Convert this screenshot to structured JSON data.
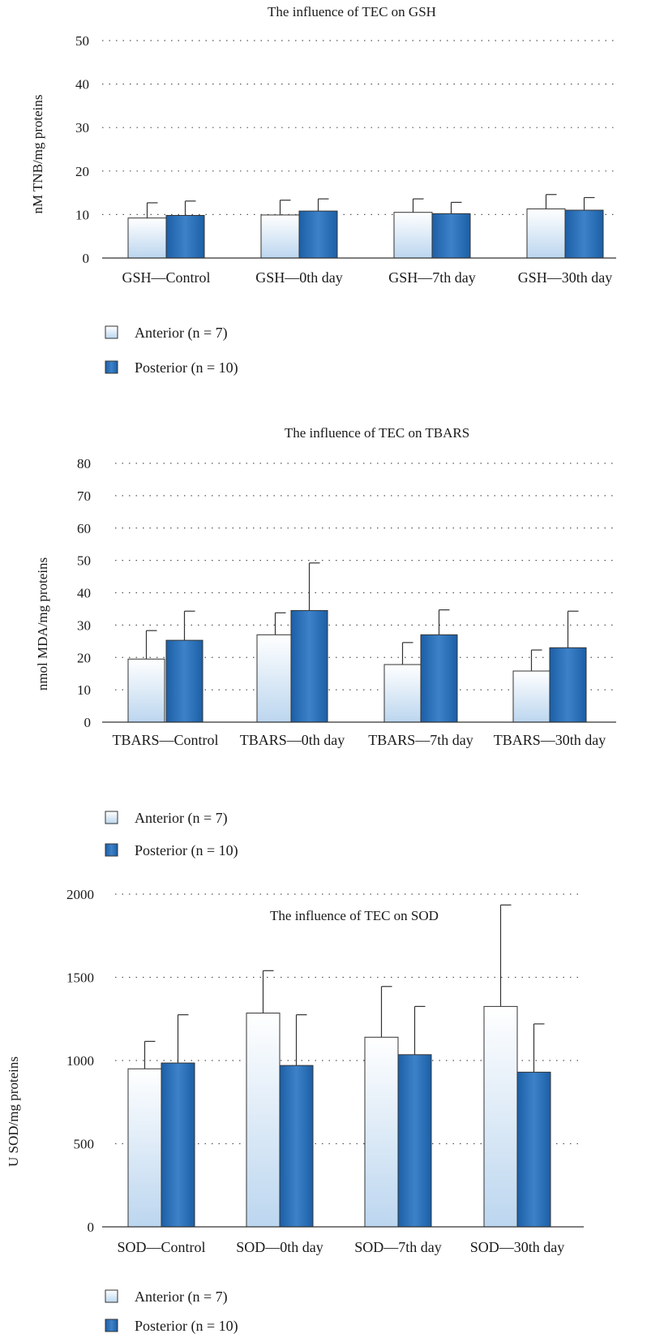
{
  "chart_data": [
    {
      "type": "bar",
      "title": "The influence of TEC on GSH",
      "ylabel": "nM TNB/mg proteins",
      "xlabel": "",
      "ylim": [
        0,
        50
      ],
      "yticks": [
        0,
        10,
        20,
        30,
        40,
        50
      ],
      "categories": [
        "GSH—Control",
        "GSH—0th day",
        "GSH—7th day",
        "GSH—30th day"
      ],
      "series": [
        {
          "name": "Anterior (n = 7)",
          "values": [
            9.2,
            9.9,
            10.5,
            11.3
          ],
          "errors": [
            3.5,
            3.4,
            3.1,
            3.3
          ]
        },
        {
          "name": "Posterior (n = 10)",
          "values": [
            9.8,
            10.8,
            10.2,
            11.0
          ],
          "errors": [
            3.3,
            2.8,
            2.6,
            2.9
          ]
        }
      ],
      "grid": true,
      "legend_position": "bottom-left"
    },
    {
      "type": "bar",
      "title": "The influence of TEC on TBARS",
      "ylabel": "nmol MDA/mg proteins",
      "xlabel": "",
      "ylim": [
        0,
        80
      ],
      "yticks": [
        0,
        10,
        20,
        30,
        40,
        50,
        60,
        70,
        80
      ],
      "categories": [
        "TBARS—Control",
        "TBARS—0th day",
        "TBARS—7th day",
        "TBARS—30th day"
      ],
      "series": [
        {
          "name": "Anterior (n = 7)",
          "values": [
            19.5,
            27.0,
            17.8,
            15.8
          ],
          "errors": [
            8.8,
            6.8,
            6.8,
            6.5
          ]
        },
        {
          "name": "Posterior (n = 10)",
          "values": [
            25.3,
            34.5,
            27.0,
            23.0
          ],
          "errors": [
            9.0,
            14.7,
            7.7,
            11.3
          ]
        }
      ],
      "grid": true,
      "legend_position": "bottom-left"
    },
    {
      "type": "bar",
      "title": "The influence of TEC on SOD",
      "ylabel": "U SOD/mg proteins",
      "xlabel": "",
      "ylim": [
        0,
        2000
      ],
      "yticks": [
        0,
        500,
        1000,
        1500,
        2000
      ],
      "categories": [
        "SOD—Control",
        "SOD—0th day",
        "SOD—7th day",
        "SOD—30th day"
      ],
      "series": [
        {
          "name": "Anterior (n = 7)",
          "values": [
            950,
            1285,
            1140,
            1325
          ],
          "errors": [
            165,
            255,
            305,
            610
          ]
        },
        {
          "name": "Posterior (n = 10)",
          "values": [
            985,
            970,
            1035,
            930
          ],
          "errors": [
            290,
            305,
            290,
            290
          ]
        }
      ],
      "grid": true,
      "legend_position": "bottom-left"
    }
  ],
  "colors": {
    "anterior_light": "#ffffff",
    "anterior_dark": "#bcd6ef",
    "posterior_light": "#3d82c9",
    "posterior_dark": "#1c5fa6"
  }
}
